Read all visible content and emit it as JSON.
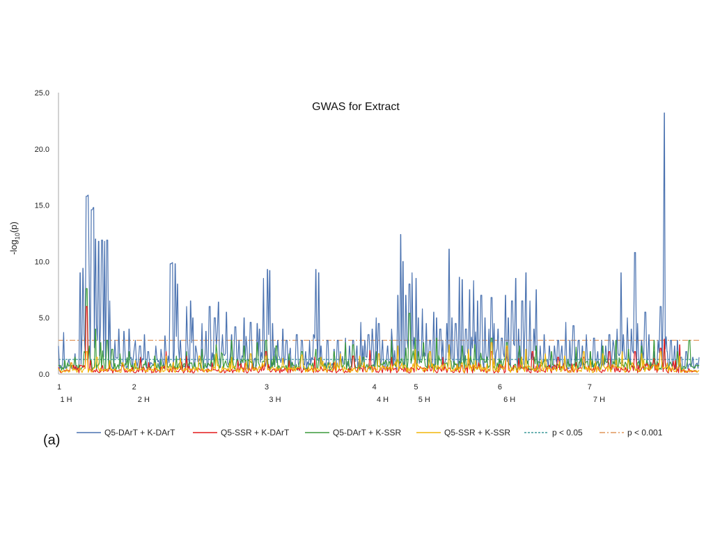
{
  "panel_label": "(a)",
  "colors": {
    "axis": "#a6a6a6",
    "dart_dart": "#4a72b0",
    "ssr_dart": "#e31a1c",
    "dart_ssr": "#3a9a3a",
    "ssr_ssr": "#f2b70a",
    "p005": "#3b9a9a",
    "p0001": "#e0955a"
  },
  "chart_data": {
    "type": "line",
    "title": "GWAS for Extract",
    "xlabel": "",
    "ylabel": "-log10(p)",
    "ylabel_base": "-log",
    "ylabel_sub": "10",
    "ylabel_tail": "(p)",
    "xlim": [
      0,
      1000
    ],
    "ylim": [
      0,
      25
    ],
    "y_ticks": [
      "0.0",
      "5.0",
      "10.0",
      "15.0",
      "20.0",
      "25.0"
    ],
    "chromosome_ticks": [
      {
        "label": "1",
        "x": 0
      },
      {
        "label": "2",
        "x": 117
      },
      {
        "label": "3",
        "x": 324
      },
      {
        "label": "4",
        "x": 492
      },
      {
        "label": "5",
        "x": 557
      },
      {
        "label": "6",
        "x": 688
      },
      {
        "label": "7",
        "x": 828
      }
    ],
    "chromosome_labels": [
      {
        "label": "1 H",
        "x": 12
      },
      {
        "label": "2 H",
        "x": 133
      },
      {
        "label": "3 H",
        "x": 338
      },
      {
        "label": "4 H",
        "x": 506
      },
      {
        "label": "5 H",
        "x": 571
      },
      {
        "label": "6 H",
        "x": 704
      },
      {
        "label": "7 H",
        "x": 844
      }
    ],
    "thresholds": [
      {
        "name": "p < 0.05",
        "value": 1.3,
        "style": "dashed"
      },
      {
        "name": "p < 0.001",
        "value": 3.0,
        "style": "dashdot"
      }
    ],
    "series": [
      {
        "name": "Q5-DArT + K-DArT",
        "peaks": [
          [
            0,
            2.5
          ],
          [
            8,
            3.7
          ],
          [
            16,
            1.3
          ],
          [
            26,
            1.8
          ],
          [
            34,
            9.0
          ],
          [
            38,
            9.4
          ],
          [
            44,
            15.8
          ],
          [
            46,
            15.9
          ],
          [
            52,
            14.6
          ],
          [
            55,
            14.8
          ],
          [
            58,
            12.0
          ],
          [
            63,
            11.8
          ],
          [
            68,
            11.9
          ],
          [
            72,
            11.8
          ],
          [
            76,
            11.9
          ],
          [
            80,
            6.5
          ],
          [
            88,
            3.0
          ],
          [
            94,
            4.0
          ],
          [
            102,
            3.8
          ],
          [
            110,
            4.0
          ],
          [
            120,
            3.0
          ],
          [
            127,
            2.5
          ],
          [
            134,
            3.5
          ],
          [
            140,
            2.0
          ],
          [
            152,
            2.5
          ],
          [
            160,
            2.2
          ],
          [
            166,
            3.4
          ],
          [
            175,
            9.8
          ],
          [
            178,
            9.9
          ],
          [
            182,
            9.8
          ],
          [
            186,
            8.0
          ],
          [
            190,
            3.0
          ],
          [
            200,
            6.0
          ],
          [
            206,
            6.5
          ],
          [
            210,
            5.0
          ],
          [
            214,
            2.5
          ],
          [
            224,
            4.5
          ],
          [
            230,
            3.8
          ],
          [
            236,
            6.0
          ],
          [
            244,
            5.0
          ],
          [
            250,
            6.4
          ],
          [
            256,
            3.5
          ],
          [
            262,
            5.5
          ],
          [
            270,
            3.5
          ],
          [
            276,
            4.2
          ],
          [
            282,
            3.0
          ],
          [
            290,
            5.0
          ],
          [
            300,
            4.6
          ],
          [
            310,
            4.5
          ],
          [
            314,
            4.0
          ],
          [
            320,
            8.5
          ],
          [
            326,
            9.3
          ],
          [
            330,
            9.2
          ],
          [
            334,
            4.5
          ],
          [
            342,
            3.0
          ],
          [
            350,
            4.0
          ],
          [
            356,
            3.0
          ],
          [
            362,
            2.3
          ],
          [
            372,
            3.5
          ],
          [
            380,
            3.0
          ],
          [
            386,
            2.0
          ],
          [
            392,
            3.0
          ],
          [
            398,
            3.5
          ],
          [
            402,
            9.3
          ],
          [
            406,
            9.0
          ],
          [
            410,
            2.5
          ],
          [
            420,
            3.0
          ],
          [
            430,
            2.2
          ],
          [
            436,
            3.0
          ],
          [
            440,
            2.0
          ],
          [
            448,
            3.2
          ],
          [
            454,
            2.5
          ],
          [
            460,
            3.0
          ],
          [
            466,
            2.5
          ],
          [
            472,
            4.6
          ],
          [
            478,
            3.0
          ],
          [
            484,
            3.5
          ],
          [
            490,
            4.0
          ],
          [
            496,
            5.0
          ],
          [
            500,
            4.5
          ],
          [
            506,
            3.0
          ],
          [
            514,
            2.5
          ],
          [
            520,
            4.0
          ],
          [
            530,
            7.0
          ],
          [
            534,
            12.4
          ],
          [
            538,
            10.0
          ],
          [
            542,
            7.0
          ],
          [
            548,
            8.0
          ],
          [
            552,
            9.0
          ],
          [
            558,
            8.5
          ],
          [
            562,
            5.0
          ],
          [
            568,
            5.8
          ],
          [
            574,
            4.5
          ],
          [
            580,
            3.0
          ],
          [
            586,
            5.5
          ],
          [
            590,
            5.0
          ],
          [
            596,
            4.0
          ],
          [
            600,
            3.0
          ],
          [
            606,
            4.5
          ],
          [
            610,
            11.1
          ],
          [
            614,
            5.0
          ],
          [
            620,
            4.5
          ],
          [
            626,
            8.6
          ],
          [
            630,
            8.4
          ],
          [
            636,
            4.0
          ],
          [
            642,
            7.5
          ],
          [
            648,
            8.3
          ],
          [
            654,
            6.5
          ],
          [
            660,
            7.0
          ],
          [
            666,
            5.0
          ],
          [
            672,
            4.0
          ],
          [
            676,
            6.8
          ],
          [
            680,
            4.5
          ],
          [
            686,
            4.0
          ],
          [
            692,
            3.2
          ],
          [
            698,
            7.0
          ],
          [
            702,
            5.0
          ],
          [
            708,
            6.5
          ],
          [
            714,
            8.5
          ],
          [
            718,
            4.0
          ],
          [
            724,
            6.5
          ],
          [
            730,
            9.0
          ],
          [
            736,
            6.5
          ],
          [
            742,
            4.0
          ],
          [
            746,
            7.5
          ],
          [
            752,
            2.5
          ],
          [
            758,
            3.5
          ],
          [
            766,
            2.5
          ],
          [
            774,
            2.5
          ],
          [
            780,
            3.0
          ],
          [
            786,
            2.5
          ],
          [
            792,
            4.6
          ],
          [
            798,
            3.0
          ],
          [
            804,
            4.3
          ],
          [
            812,
            3.0
          ],
          [
            818,
            2.5
          ],
          [
            824,
            3.5
          ],
          [
            830,
            2.0
          ],
          [
            836,
            3.2
          ],
          [
            842,
            2.0
          ],
          [
            848,
            3.0
          ],
          [
            854,
            2.5
          ],
          [
            860,
            3.5
          ],
          [
            866,
            3.0
          ],
          [
            872,
            4.0
          ],
          [
            878,
            9.0
          ],
          [
            882,
            3.5
          ],
          [
            888,
            5.0
          ],
          [
            894,
            4.0
          ],
          [
            900,
            10.8
          ],
          [
            904,
            4.5
          ],
          [
            910,
            3.0
          ],
          [
            916,
            5.5
          ],
          [
            922,
            3.5
          ],
          [
            930,
            2.0
          ],
          [
            936,
            3.0
          ],
          [
            940,
            6.0
          ],
          [
            944,
            6.2
          ],
          [
            946,
            23.2
          ],
          [
            950,
            2.0
          ],
          [
            956,
            3.0
          ],
          [
            962,
            2.5
          ],
          [
            966,
            3.0
          ],
          [
            972,
            1.5
          ],
          [
            980,
            2.0
          ],
          [
            990,
            1.5
          ],
          [
            1000,
            1.5
          ]
        ]
      },
      {
        "name": "Q5-SSR + K-DArT",
        "peaks": [
          [
            0,
            0.6
          ],
          [
            20,
            1.0
          ],
          [
            44,
            6.0
          ],
          [
            50,
            1.2
          ],
          [
            80,
            1.0
          ],
          [
            100,
            0.8
          ],
          [
            128,
            1.5
          ],
          [
            168,
            2.0
          ],
          [
            200,
            1.6
          ],
          [
            240,
            1.0
          ],
          [
            280,
            1.2
          ],
          [
            324,
            2.0
          ],
          [
            360,
            1.2
          ],
          [
            400,
            1.5
          ],
          [
            430,
            1.0
          ],
          [
            460,
            1.6
          ],
          [
            486,
            2.1
          ],
          [
            520,
            1.5
          ],
          [
            557,
            1.8
          ],
          [
            600,
            1.5
          ],
          [
            640,
            2.0
          ],
          [
            676,
            2.0
          ],
          [
            700,
            2.4
          ],
          [
            740,
            2.0
          ],
          [
            780,
            1.5
          ],
          [
            820,
            1.5
          ],
          [
            860,
            2.0
          ],
          [
            900,
            2.0
          ],
          [
            940,
            2.3
          ],
          [
            946,
            3.1
          ],
          [
            970,
            2.6
          ],
          [
            1000,
            0.3
          ]
        ]
      },
      {
        "name": "Q5-DArT + K-SSR",
        "peaks": [
          [
            0,
            0.8
          ],
          [
            10,
            1.2
          ],
          [
            26,
            1.5
          ],
          [
            40,
            2.0
          ],
          [
            44,
            7.6
          ],
          [
            48,
            2.5
          ],
          [
            58,
            4.0
          ],
          [
            66,
            2.8
          ],
          [
            76,
            3.0
          ],
          [
            84,
            2.2
          ],
          [
            96,
            1.8
          ],
          [
            110,
            2.0
          ],
          [
            128,
            1.5
          ],
          [
            150,
            1.6
          ],
          [
            168,
            1.8
          ],
          [
            184,
            1.6
          ],
          [
            200,
            2.0
          ],
          [
            224,
            2.2
          ],
          [
            246,
            2.6
          ],
          [
            270,
            3.0
          ],
          [
            290,
            2.5
          ],
          [
            310,
            2.8
          ],
          [
            324,
            3.0
          ],
          [
            340,
            2.5
          ],
          [
            360,
            1.8
          ],
          [
            380,
            2.0
          ],
          [
            402,
            2.2
          ],
          [
            430,
            2.0
          ],
          [
            448,
            2.8
          ],
          [
            460,
            2.6
          ],
          [
            476,
            1.5
          ],
          [
            496,
            2.0
          ],
          [
            520,
            3.0
          ],
          [
            548,
            5.4
          ],
          [
            557,
            3.2
          ],
          [
            570,
            2.8
          ],
          [
            590,
            3.2
          ],
          [
            610,
            2.5
          ],
          [
            630,
            2.5
          ],
          [
            650,
            2.6
          ],
          [
            676,
            3.2
          ],
          [
            700,
            2.8
          ],
          [
            720,
            2.5
          ],
          [
            746,
            2.5
          ],
          [
            770,
            2.0
          ],
          [
            790,
            1.5
          ],
          [
            808,
            2.4
          ],
          [
            830,
            2.0
          ],
          [
            850,
            2.5
          ],
          [
            870,
            3.0
          ],
          [
            890,
            2.2
          ],
          [
            910,
            2.5
          ],
          [
            930,
            3.0
          ],
          [
            946,
            2.6
          ],
          [
            966,
            2.0
          ],
          [
            985,
            3.0
          ],
          [
            1000,
            0.8
          ]
        ]
      },
      {
        "name": "Q5-SSR + K-SSR",
        "peaks": [
          [
            0,
            0.5
          ],
          [
            20,
            1.0
          ],
          [
            44,
            2.0
          ],
          [
            60,
            1.5
          ],
          [
            80,
            1.2
          ],
          [
            100,
            1.0
          ],
          [
            120,
            1.2
          ],
          [
            150,
            1.0
          ],
          [
            168,
            1.6
          ],
          [
            190,
            1.4
          ],
          [
            220,
            1.6
          ],
          [
            246,
            1.8
          ],
          [
            270,
            1.5
          ],
          [
            300,
            1.8
          ],
          [
            324,
            1.6
          ],
          [
            350,
            1.4
          ],
          [
            380,
            1.7
          ],
          [
            410,
            1.5
          ],
          [
            440,
            1.8
          ],
          [
            470,
            1.6
          ],
          [
            500,
            1.8
          ],
          [
            530,
            2.5
          ],
          [
            557,
            2.2
          ],
          [
            580,
            2.0
          ],
          [
            610,
            2.6
          ],
          [
            640,
            2.2
          ],
          [
            676,
            2.8
          ],
          [
            700,
            2.5
          ],
          [
            730,
            2.2
          ],
          [
            760,
            1.8
          ],
          [
            790,
            1.6
          ],
          [
            820,
            2.0
          ],
          [
            850,
            1.8
          ],
          [
            880,
            2.0
          ],
          [
            910,
            1.8
          ],
          [
            940,
            2.0
          ],
          [
            970,
            1.6
          ],
          [
            1000,
            0.3
          ]
        ]
      }
    ],
    "legend_position": "bottom"
  }
}
